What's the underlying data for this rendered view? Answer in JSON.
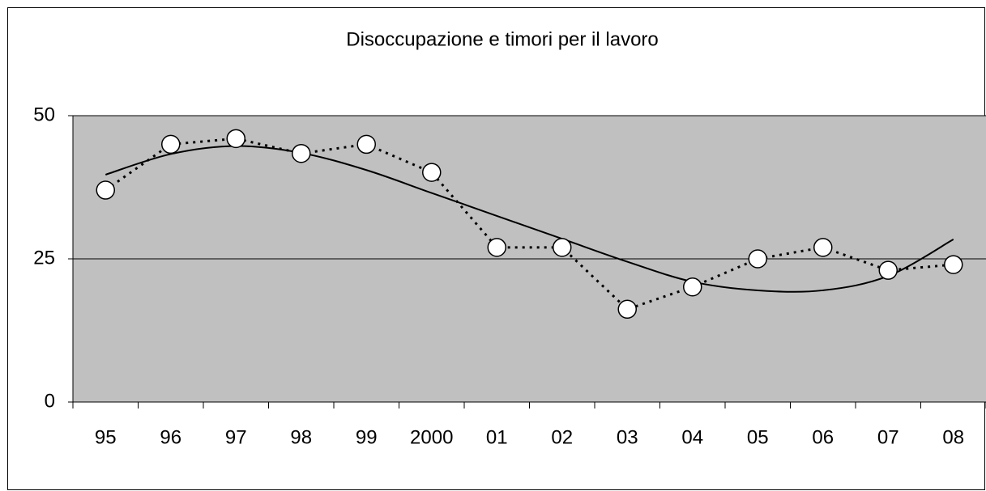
{
  "chart_data": {
    "type": "line",
    "title": "Disoccupazione e timori per il lavoro",
    "categories": [
      "95",
      "96",
      "97",
      "98",
      "99",
      "2000",
      "01",
      "02",
      "03",
      "04",
      "05",
      "06",
      "07",
      "08"
    ],
    "series": [
      {
        "color": "#000000",
        "style": "dotted",
        "marker": true,
        "values": [
          37,
          45,
          46,
          43.4,
          45,
          40.1,
          27,
          27,
          16.2,
          20.1,
          25,
          27,
          23,
          24
        ]
      },
      {
        "color": "#000000",
        "style": "solid",
        "marker": false,
        "values": [
          39.7,
          43.3,
          44.7,
          43.5,
          40.5,
          36.5,
          32.5,
          28.5,
          24.5,
          21,
          19.5,
          19.5,
          22,
          28.4
        ]
      }
    ],
    "ylim": [
      0,
      50
    ],
    "yticks": [
      0,
      25,
      50
    ],
    "grid": true,
    "plot_background": "#c0c0c0"
  }
}
